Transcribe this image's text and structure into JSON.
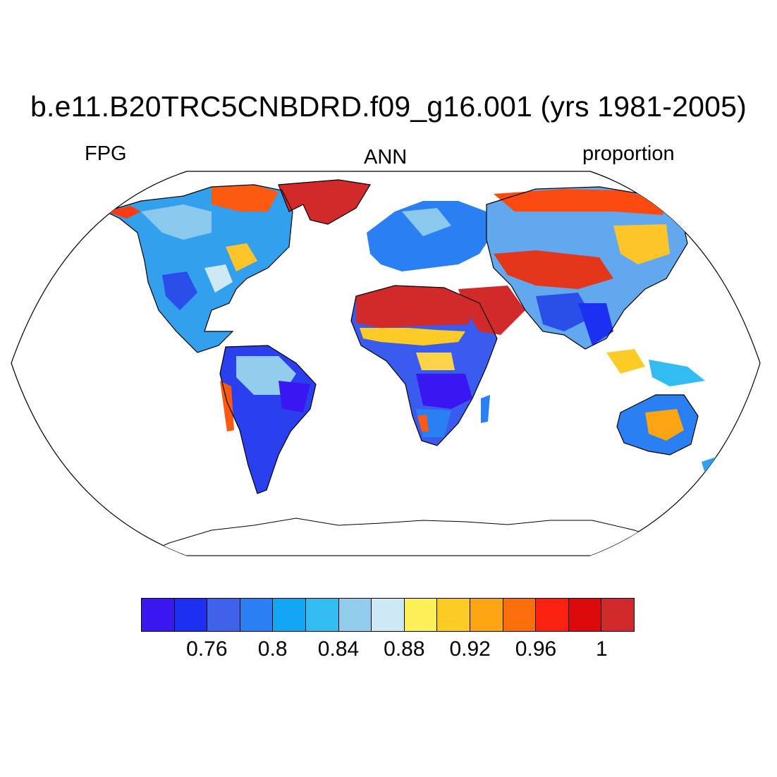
{
  "header": {
    "title": "b.e11.B20TRC5CNBDRD.f09_g16.001 (yrs 1981-2005)",
    "left_label": "FPG",
    "center_label": "ANN",
    "right_label": "proportion"
  },
  "map": {
    "projection": "Robinson",
    "field": "FPG",
    "season": "ANN",
    "units": "proportion",
    "land_outline_color": "#000000",
    "ocean_color": "#ffffff"
  },
  "colorbar": {
    "colors": [
      "#3a16f0",
      "#1c30f2",
      "#3e62e8",
      "#2a80f2",
      "#12a6f5",
      "#33bcf2",
      "#92cdee",
      "#cde9f6",
      "#fdf057",
      "#fdcb25",
      "#fca412",
      "#fb6e0a",
      "#fb2110",
      "#dc0a0a",
      "#d22a2a"
    ],
    "tick_labels": [
      "0.76",
      "0.8",
      "0.84",
      "0.88",
      "0.92",
      "0.96",
      "1"
    ],
    "tick_positions_index": [
      2,
      4,
      6,
      8,
      10,
      12,
      14
    ]
  }
}
